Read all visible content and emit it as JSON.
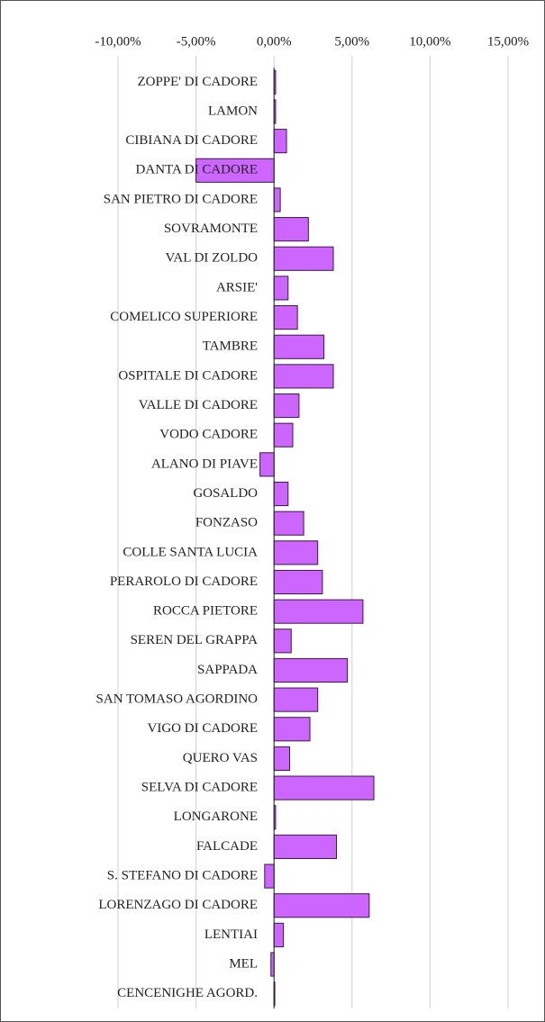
{
  "chart_data": {
    "type": "hbar",
    "categories": [
      "ZOPPE' DI CADORE",
      "LAMON",
      "CIBIANA DI CADORE",
      "DANTA DI CADORE",
      "SAN PIETRO DI CADORE",
      "SOVRAMONTE",
      "VAL DI ZOLDO",
      "ARSIE'",
      "COMELICO SUPERIORE",
      "TAMBRE",
      "OSPITALE DI CADORE",
      "VALLE DI CADORE",
      "VODO CADORE",
      "ALANO DI PIAVE",
      "GOSALDO",
      "FONZASO",
      "COLLE SANTA LUCIA",
      "PERAROLO DI CADORE",
      "ROCCA PIETORE",
      "SEREN DEL GRAPPA",
      "SAPPADA",
      "SAN TOMASO AGORDINO",
      "VIGO DI CADORE",
      "QUERO VAS",
      "SELVA DI CADORE",
      "LONGARONE",
      "FALCADE",
      "S. STEFANO DI CADORE",
      "LORENZAGO DI CADORE",
      "LENTIAI",
      "MEL",
      "CENCENIGHE AGORD."
    ],
    "values": [
      0.1,
      0.1,
      0.8,
      -5.0,
      0.4,
      2.2,
      3.8,
      0.9,
      1.5,
      3.2,
      3.8,
      1.6,
      1.2,
      -0.9,
      0.9,
      1.9,
      2.8,
      3.1,
      5.7,
      1.1,
      4.7,
      2.8,
      2.3,
      1.0,
      6.4,
      0.1,
      4.0,
      -0.6,
      6.1,
      0.6,
      -0.2,
      0.05
    ],
    "color": "#cc66ff",
    "xlim": [
      -10,
      15
    ],
    "xticks": [
      {
        "value": -10,
        "label": "-10,00%"
      },
      {
        "value": -5,
        "label": "-5,00%"
      },
      {
        "value": 0,
        "label": "0,00%"
      },
      {
        "value": 5,
        "label": "5,00%"
      },
      {
        "value": 10,
        "label": "10,00%"
      },
      {
        "value": 15,
        "label": "15,00%"
      }
    ],
    "grid": true
  }
}
